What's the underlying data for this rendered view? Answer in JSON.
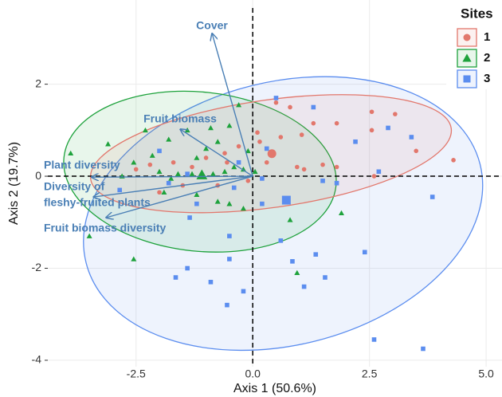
{
  "chart_data": {
    "type": "biplot",
    "x_label": "Axis 1 (50.6%)",
    "y_label": "Axis 2 (19.7%)",
    "xlim": [
      -4.39,
      5.34
    ],
    "ylim": [
      -4.14,
      3.83
    ],
    "xticks": [
      -2.5,
      {
        "value": 0,
        "label": "0.0"
      },
      2.5,
      {
        "value": 5,
        "label": "5.0"
      }
    ],
    "yticks": [
      -4,
      -2,
      0,
      2
    ],
    "grid": true,
    "legend_title": "Sites",
    "series": [
      {
        "name": "1",
        "color": "#e2776c",
        "marker": "circle",
        "x": [
          0.5,
          0.8,
          1.3,
          1.8,
          2.55,
          3.05,
          2.55,
          0.6,
          1.05,
          0.15,
          -0.3,
          -0.6,
          -1.0,
          -1.7,
          -2.2,
          -1.3,
          -0.55,
          0.3,
          0.95,
          1.1,
          1.5,
          1.8,
          2.6,
          3.5,
          4.3,
          -0.1,
          -0.75,
          -1.5,
          -2.5,
          -2.0,
          0.1
        ],
        "y": [
          1.6,
          1.5,
          1.15,
          1.15,
          1.4,
          1.35,
          1.0,
          0.85,
          0.9,
          0.75,
          0.65,
          0.5,
          0.4,
          0.3,
          0.25,
          0.2,
          0.3,
          0.3,
          0.2,
          0.15,
          0.25,
          0.2,
          0.0,
          0.55,
          0.35,
          -0.1,
          -0.2,
          -0.2,
          0.15,
          -0.35,
          0.95
        ],
        "centroid": [
          0.41,
          0.49
        ],
        "ellipse": {
          "cx": 0.39,
          "cy": 0.49,
          "rx": 3.9,
          "ry": 1.17,
          "angle": -8
        }
      },
      {
        "name": "2",
        "color": "#1ea23c",
        "marker": "triangle",
        "x": [
          -3.9,
          -3.1,
          -2.55,
          -2.3,
          -2.8,
          -2.55,
          -3.5,
          -1.4,
          -1.8,
          -1.2,
          -1.0,
          -0.75,
          -0.5,
          -0.3,
          -0.1,
          -2.0,
          -1.6,
          -1.3,
          -1.05,
          -0.85,
          -0.6,
          -0.4,
          -0.2,
          0.05,
          -1.9,
          -1.2,
          -0.75,
          -0.5,
          -0.2,
          0.8,
          1.9,
          0.95,
          -1.75,
          -2.15,
          -0.9
        ],
        "y": [
          0.5,
          0.7,
          0.3,
          1.0,
          0.0,
          -1.8,
          -1.3,
          1.0,
          0.8,
          0.4,
          0.6,
          0.75,
          1.1,
          1.55,
          0.55,
          0.1,
          0.05,
          0.05,
          0.0,
          0.05,
          0.1,
          0.2,
          0.15,
          0.1,
          -0.35,
          -0.4,
          -0.55,
          -0.6,
          -0.7,
          -0.95,
          -0.8,
          -2.1,
          -0.05,
          0.45,
          1.05
        ],
        "centroid": [
          -1.09,
          0.03
        ],
        "ellipse": {
          "cx": -1.13,
          "cy": 0.1,
          "rx": 2.93,
          "ry": 1.73,
          "angle": 6
        }
      },
      {
        "name": "3",
        "color": "#5b8def",
        "marker": "square",
        "x": [
          0.5,
          1.3,
          2.9,
          2.2,
          3.4,
          2.7,
          1.5,
          0.3,
          -0.3,
          -1.4,
          -2.0,
          -1.8,
          -2.85,
          -1.2,
          -0.5,
          0.2,
          0.6,
          -0.5,
          -1.4,
          -0.9,
          -0.2,
          -1.65,
          -0.55,
          0.85,
          1.35,
          1.55,
          1.1,
          2.4,
          -1.35,
          -0.4,
          0.2,
          2.6,
          3.65,
          3.85,
          1.8
        ],
        "y": [
          1.7,
          1.5,
          1.05,
          0.75,
          0.85,
          0.1,
          -0.1,
          0.6,
          0.3,
          0.05,
          0.55,
          -0.15,
          -0.3,
          -0.6,
          -1.3,
          -0.6,
          -1.4,
          -1.8,
          -2.0,
          -2.3,
          -2.5,
          -2.2,
          -2.8,
          -1.85,
          -1.7,
          -2.2,
          -2.4,
          -1.65,
          -0.9,
          -0.25,
          -0.05,
          -3.55,
          -3.75,
          -0.45,
          -0.15
        ],
        "centroid": [
          0.72,
          -0.52
        ],
        "ellipse": {
          "cx": 0.65,
          "cy": -0.81,
          "rx": 4.35,
          "ry": 2.86,
          "angle": -14
        }
      }
    ],
    "arrow_color": "#4a7fb5",
    "arrows": [
      {
        "label": [
          "Cover"
        ],
        "x": -0.87,
        "y": 3.1
      },
      {
        "label": [
          "Fruit biomass"
        ],
        "x": -1.55,
        "y": 1.02
      },
      {
        "label": [
          "Plant diversity"
        ],
        "x": -3.45,
        "y": -0.02
      },
      {
        "label": [
          "Diversity of",
          "fleshy-fruited plants"
        ],
        "x": -3.41,
        "y": -0.45
      },
      {
        "label": [
          "Fruit biomass diversity"
        ],
        "x": -3.14,
        "y": -0.9
      }
    ]
  }
}
